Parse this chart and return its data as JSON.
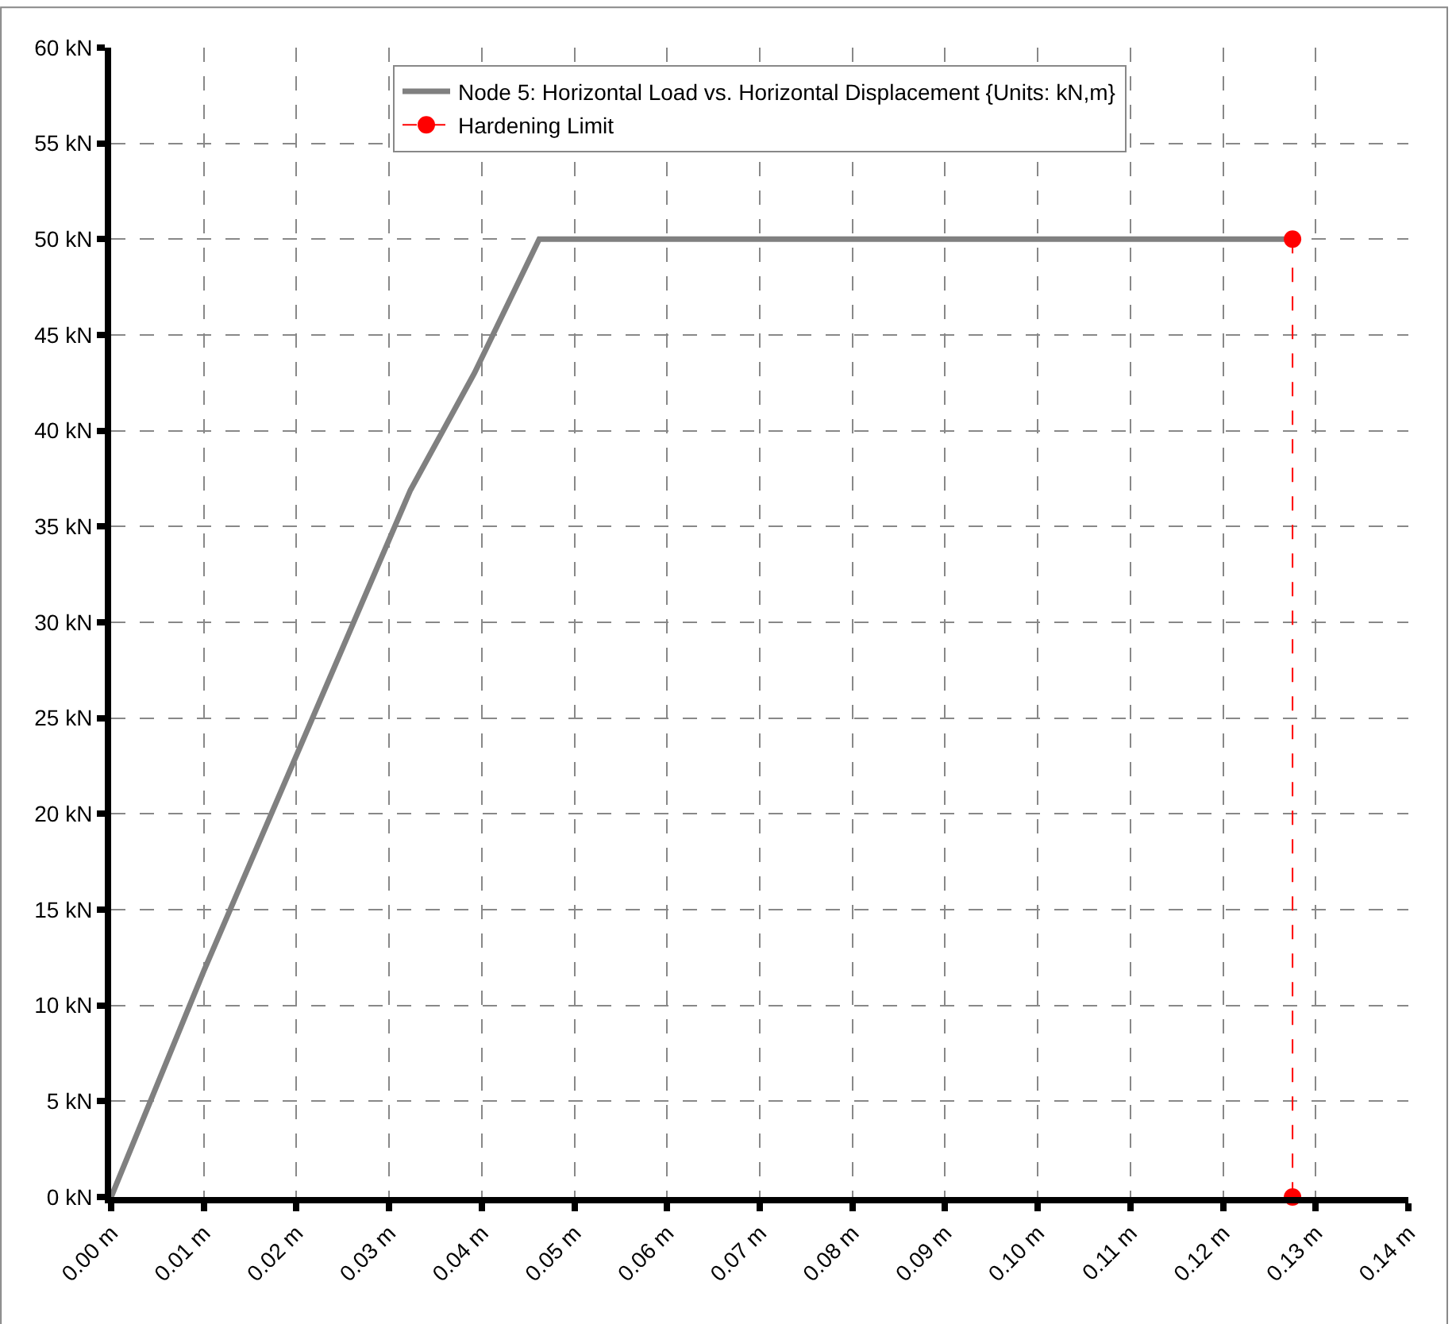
{
  "chart_data": {
    "type": "line",
    "series": [
      {
        "name": "Node 5: Horizontal Load vs. Horizontal Displacement {Units: kN,m}",
        "color": "#808080",
        "x": [
          0,
          0.01,
          0.0323,
          0.0392,
          0.0462,
          0.1275
        ],
        "values": [
          0,
          11.8,
          36.9,
          43,
          50,
          50
        ],
        "marker": "none",
        "line_style": "solid"
      },
      {
        "name": "Hardening Limit",
        "color": "#ff0000",
        "x": [
          0.1275,
          0.1275
        ],
        "values": [
          50,
          0
        ],
        "marker": "circle",
        "line_style": "dashed"
      }
    ],
    "xlim": [
      0,
      0.14
    ],
    "xticks": [
      {
        "value": 0,
        "label": "0.00 m"
      },
      {
        "value": 0.01,
        "label": "0.01 m"
      },
      {
        "value": 0.02,
        "label": "0.02 m"
      },
      {
        "value": 0.03,
        "label": "0.03 m"
      },
      {
        "value": 0.04,
        "label": "0.04 m"
      },
      {
        "value": 0.05,
        "label": "0.05 m"
      },
      {
        "value": 0.06,
        "label": "0.06 m"
      },
      {
        "value": 0.07,
        "label": "0.07 m"
      },
      {
        "value": 0.08,
        "label": "0.08 m"
      },
      {
        "value": 0.09,
        "label": "0.09 m"
      },
      {
        "value": 0.1,
        "label": "0.10 m"
      },
      {
        "value": 0.11,
        "label": "0.11 m"
      },
      {
        "value": 0.12,
        "label": "0.12 m"
      },
      {
        "value": 0.13,
        "label": "0.13 m"
      },
      {
        "value": 0.14,
        "label": "0.14 m"
      }
    ],
    "ylim": [
      0,
      60
    ],
    "yticks": [
      {
        "value": 0,
        "label": "0 kN"
      },
      {
        "value": 5,
        "label": "5 kN"
      },
      {
        "value": 10,
        "label": "10 kN"
      },
      {
        "value": 15,
        "label": "15 kN"
      },
      {
        "value": 20,
        "label": "20 kN"
      },
      {
        "value": 25,
        "label": "25 kN"
      },
      {
        "value": 30,
        "label": "30 kN"
      },
      {
        "value": 35,
        "label": "35 kN"
      },
      {
        "value": 40,
        "label": "40 kN"
      },
      {
        "value": 45,
        "label": "45 kN"
      },
      {
        "value": 50,
        "label": "50 kN"
      },
      {
        "value": 55,
        "label": "55 kN"
      },
      {
        "value": 60,
        "label": "60 kN"
      }
    ],
    "grid": true,
    "legend": "top"
  }
}
